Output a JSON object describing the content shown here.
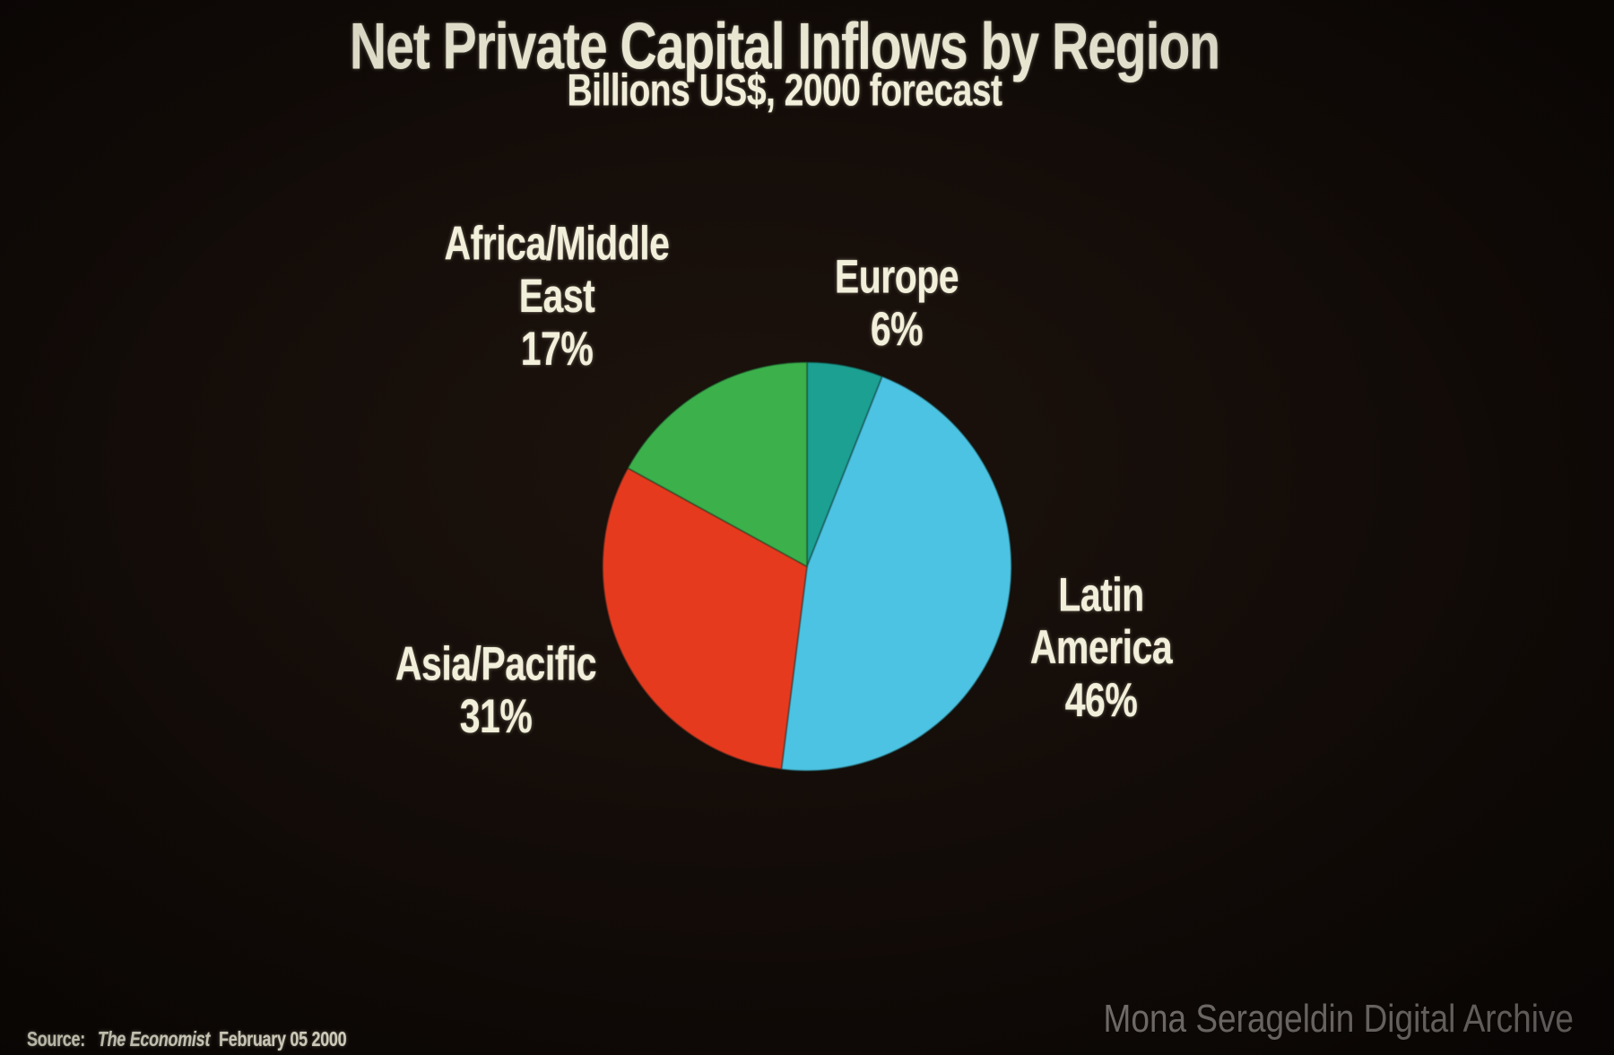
{
  "slide": {
    "title": "Net Private Capital Inflows by Region",
    "subtitle": "Billions US$, 2000 forecast",
    "source_prefix": "Source:",
    "source_name": "The Economist",
    "source_date": "February 05 2000",
    "watermark": "Mona Serageldin Digital Archive"
  },
  "colors": {
    "background": "#130c08",
    "text": "#f2efda",
    "watermark": "#7b7672",
    "europe": "#1ba092",
    "latin_america": "#4cc3e2",
    "asia_pacific": "#e63a1e",
    "africa_middle_east": "#3cb14b"
  },
  "chart_data": {
    "type": "pie",
    "title": "Net Private Capital Inflows by Region",
    "subtitle": "Billions US$, 2000 forecast",
    "value_unit": "%",
    "start_angle_deg": 0,
    "direction": "clockwise",
    "legend_position": "labels-around-pie",
    "slices": [
      {
        "label": "Europe",
        "value": 6,
        "color": "#1ba092",
        "label_lines": [
          "Europe",
          "6%"
        ]
      },
      {
        "label": "Latin America",
        "value": 46,
        "color": "#4cc3e2",
        "label_lines": [
          "Latin",
          "America",
          "46%"
        ]
      },
      {
        "label": "Asia/Pacific",
        "value": 31,
        "color": "#e63a1e",
        "label_lines": [
          "Asia/Pacific",
          "31%"
        ]
      },
      {
        "label": "Africa/Middle East",
        "value": 17,
        "color": "#3cb14b",
        "label_lines": [
          "Africa/Middle",
          "East",
          "17%"
        ]
      }
    ]
  }
}
